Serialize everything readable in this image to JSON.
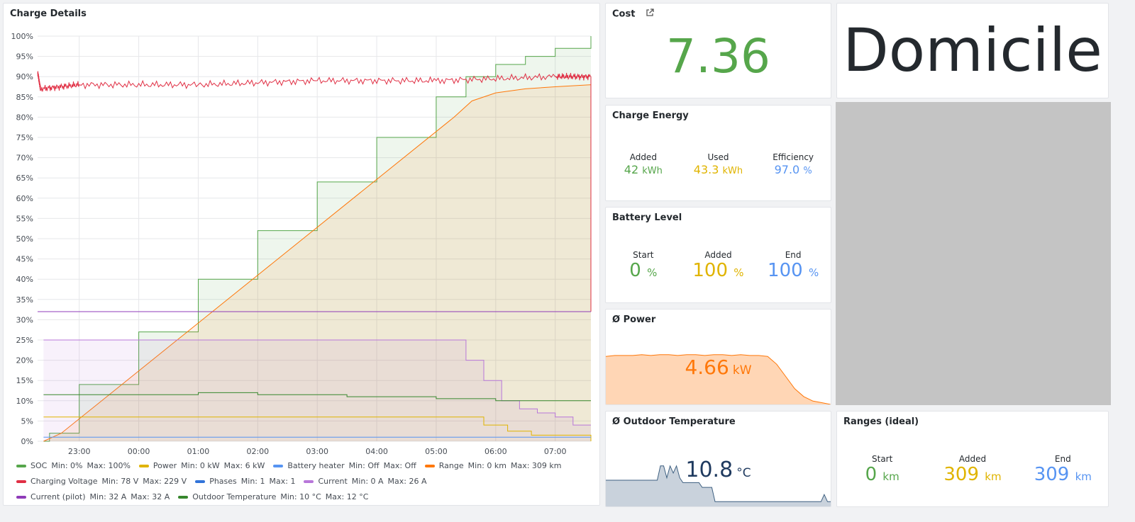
{
  "charge_details": {
    "title": "Charge Details",
    "legend": [
      {
        "name": "SOC",
        "min": "Min: 0%",
        "max": "Max: 100%",
        "color": "#56a64b"
      },
      {
        "name": "Power",
        "min": "Min: 0 kW",
        "max": "Max: 6 kW",
        "color": "#e0b400"
      },
      {
        "name": "Battery heater",
        "min": "Min: Off",
        "max": "Max: Off",
        "color": "#5794f2"
      },
      {
        "name": "Range",
        "min": "Min: 0 km",
        "max": "Max: 309 km",
        "color": "#ff780a"
      },
      {
        "name": "Charging Voltage",
        "min": "Min: 78 V",
        "max": "Max: 229 V",
        "color": "#e02f44"
      },
      {
        "name": "Phases",
        "min": "Min: 1",
        "max": "Max: 1",
        "color": "#3274d9"
      },
      {
        "name": "Current",
        "min": "Min: 0 A",
        "max": "Max: 26 A",
        "color": "#b877d9"
      },
      {
        "name": "Current (pilot)",
        "min": "Min: 32 A",
        "max": "Max: 32 A",
        "color": "#8f3bb8"
      },
      {
        "name": "Outdoor Temperature",
        "min": "Min: 10 °C",
        "max": "Max: 12 °C",
        "color": "#37872d"
      }
    ]
  },
  "chart_data": {
    "type": "line",
    "title": "Charge Details",
    "y_ticks": [
      "0%",
      "5%",
      "10%",
      "15%",
      "20%",
      "25%",
      "30%",
      "35%",
      "40%",
      "45%",
      "50%",
      "55%",
      "60%",
      "65%",
      "70%",
      "75%",
      "80%",
      "85%",
      "90%",
      "95%",
      "100%"
    ],
    "ylim": [
      0,
      100
    ],
    "x_ticks": [
      "23:00",
      "00:00",
      "01:00",
      "02:00",
      "03:00",
      "04:00",
      "05:00",
      "06:00",
      "07:00"
    ],
    "x_tick_hours": [
      23,
      24,
      25,
      26,
      27,
      28,
      29,
      30,
      31
    ],
    "xlim_hours": [
      22.3,
      31.6
    ],
    "grid": true,
    "legend_position": "bottom",
    "series": [
      {
        "name": "SOC",
        "color": "#56a64b",
        "step": true,
        "fill": true,
        "x": [
          22.4,
          22.5,
          23.0,
          24.0,
          25.0,
          26.0,
          27.0,
          28.0,
          29.0,
          29.5,
          30.0,
          30.5,
          31.0,
          31.6
        ],
        "y": [
          0,
          2,
          14,
          27,
          40,
          52,
          64,
          75,
          85,
          90,
          93,
          95,
          97,
          100
        ]
      },
      {
        "name": "Range",
        "color": "#ff780a",
        "fill": true,
        "x": [
          22.4,
          22.7,
          29.3,
          29.6,
          30.0,
          30.5,
          31.0,
          31.6,
          31.6
        ],
        "y": [
          0,
          2,
          80,
          84,
          86,
          87,
          87.5,
          88,
          32
        ]
      },
      {
        "name": "Charging Voltage",
        "color": "#e02f44",
        "noisy": true,
        "x": [
          22.3,
          22.35,
          23.0,
          25.0,
          27.0,
          29.0,
          31.0,
          31.6,
          31.6
        ],
        "y": [
          91,
          87,
          88,
          88,
          89,
          89,
          90,
          90,
          32
        ]
      },
      {
        "name": "Current (pilot)",
        "color": "#8f3bb8",
        "x": [
          22.3,
          31.6
        ],
        "y": [
          32,
          32
        ]
      },
      {
        "name": "Current",
        "color": "#b877d9",
        "fill": true,
        "step": true,
        "x": [
          22.4,
          29.3,
          29.5,
          29.8,
          30.1,
          30.4,
          30.7,
          31.0,
          31.3,
          31.6
        ],
        "y": [
          25,
          25,
          20,
          15,
          10,
          8,
          7,
          6,
          4,
          4
        ]
      },
      {
        "name": "Outdoor Temperature",
        "color": "#37872d",
        "step": true,
        "x": [
          22.4,
          25.0,
          26.0,
          27.5,
          29.0,
          30.0,
          31.6
        ],
        "y": [
          11.5,
          12,
          11.5,
          11,
          10.5,
          10,
          10
        ]
      },
      {
        "name": "Power",
        "color": "#e0b400",
        "step": true,
        "x": [
          22.4,
          29.3,
          29.8,
          30.2,
          30.6,
          31.6
        ],
        "y": [
          6,
          6,
          4,
          2.5,
          1.5,
          0
        ]
      },
      {
        "name": "Phases",
        "color": "#5794f2",
        "x": [
          22.4,
          31.6
        ],
        "y": [
          1,
          1
        ]
      }
    ]
  },
  "cost": {
    "title": "Cost",
    "value": "7.36",
    "external_icon": "external-link-icon"
  },
  "location": {
    "value": "Domicile"
  },
  "charge_energy": {
    "title": "Charge Energy",
    "items": [
      {
        "label": "Added",
        "value": "42",
        "unit": "kWh",
        "color": "#56a64b"
      },
      {
        "label": "Used",
        "value": "43.3",
        "unit": "kWh",
        "color": "#e0b400"
      },
      {
        "label": "Efficiency",
        "value": "97.0",
        "unit": "%",
        "color": "#5794f2"
      }
    ]
  },
  "battery_level": {
    "title": "Battery Level",
    "items": [
      {
        "label": "Start",
        "value": "0",
        "unit": "%",
        "color": "#56a64b"
      },
      {
        "label": "Added",
        "value": "100",
        "unit": "%",
        "color": "#e0b400"
      },
      {
        "label": "End",
        "value": "100",
        "unit": "%",
        "color": "#5794f2"
      }
    ]
  },
  "avg_power": {
    "title": "Ø Power",
    "value": "4.66",
    "unit": "kW",
    "color": "#ff780a",
    "sparkline": [
      5.5,
      5.6,
      5.6,
      5.6,
      5.7,
      5.6,
      5.7,
      5.7,
      5.6,
      5.7,
      5.7,
      5.6,
      5.7,
      5.7,
      5.6,
      5.7,
      5.6,
      5.6,
      5.5,
      4.6,
      3.2,
      1.8,
      0.9,
      0.4,
      0.2,
      0
    ]
  },
  "outdoor_temp": {
    "title": "Ø Outdoor Temperature",
    "value": "10.8",
    "unit": "°C",
    "color": "#1f3a5f",
    "sparkline": [
      10.9,
      10.9,
      10.9,
      10.9,
      10.9,
      10.9,
      10.9,
      10.9,
      10.9,
      10.9,
      10.9,
      10.9,
      10.9,
      10.9,
      10.9,
      10.9,
      10.9,
      11.5,
      11.5,
      11.0,
      11.5,
      11.2,
      11.5,
      11.0,
      10.8,
      10.8,
      10.8,
      10.8,
      10.8,
      10.8,
      10.6,
      10.6,
      10.6,
      10.6,
      10.0,
      10.0,
      10.0,
      10.0,
      10.0,
      10.0,
      10.0,
      10.0,
      10.0,
      10.0,
      10.0,
      10.0,
      10.0,
      10.0,
      10.0,
      10.0,
      10.0,
      10.0,
      10.0,
      10.0,
      10.0,
      10.0,
      10.0,
      10.0,
      10.0,
      10.0,
      10.0,
      10.0,
      10.0,
      10.0,
      10.0,
      10.0,
      10.0,
      10.0,
      10.3,
      10.0,
      10.0
    ]
  },
  "ranges": {
    "title": "Ranges (ideal)",
    "items": [
      {
        "label": "Start",
        "value": "0",
        "unit": "km",
        "color": "#56a64b"
      },
      {
        "label": "Added",
        "value": "309",
        "unit": "km",
        "color": "#e0b400"
      },
      {
        "label": "End",
        "value": "309",
        "unit": "km",
        "color": "#5794f2"
      }
    ]
  },
  "map_placeholder": {
    "color": "#c4c4c4"
  }
}
